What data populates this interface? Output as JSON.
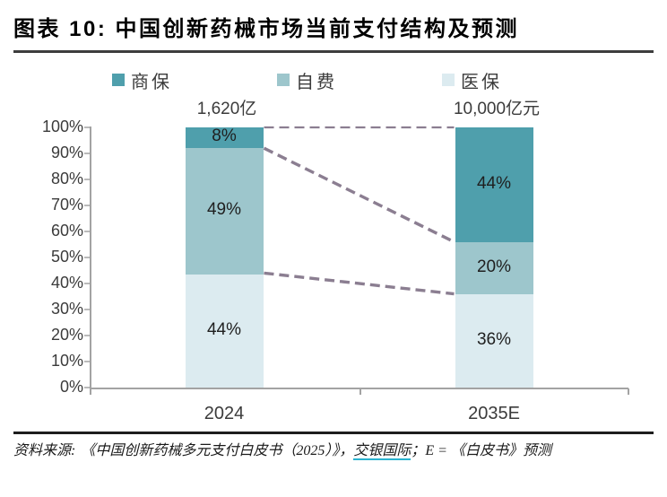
{
  "header": {
    "title": "图表 10: 中国创新药械市场当前支付结构及预测"
  },
  "legend": [
    {
      "label": "商保",
      "color": "#4f9fac"
    },
    {
      "label": "自费",
      "color": "#9dc6cc"
    },
    {
      "label": "医保",
      "color": "#dcebf0"
    }
  ],
  "chart_data": {
    "type": "bar",
    "stacked": true,
    "title": "中国创新药械市场当前支付结构及预测",
    "categories": [
      "2024",
      "2035E"
    ],
    "category_totals": [
      "1,620亿",
      "10,000亿元"
    ],
    "series": [
      {
        "name": "商保",
        "color": "#4f9fac",
        "values": [
          8,
          44
        ]
      },
      {
        "name": "自费",
        "color": "#9dc6cc",
        "values": [
          49,
          20
        ]
      },
      {
        "name": "医保",
        "color": "#dcebf0",
        "values": [
          44,
          36
        ]
      }
    ],
    "value_suffix": "%",
    "ylim": [
      0,
      100
    ],
    "y_ticks": [
      "100%",
      "90%",
      "80%",
      "70%",
      "60%",
      "50%",
      "40%",
      "30%",
      "20%",
      "10%",
      "0%"
    ],
    "legend_position": "top",
    "grid": false,
    "connectors": [
      {
        "from_pct": 100,
        "to_pct": 100
      },
      {
        "from_pct": 92,
        "to_pct": 56
      },
      {
        "from_pct": 44,
        "to_pct": 36
      }
    ],
    "connector_color": "#8b7e91",
    "axis_color": "#a3a3a3"
  },
  "footer": {
    "prefix": "资料来源:",
    "text_before_link": "《中国创新药械多元支付白皮书（2025）》，",
    "link": "交银国际",
    "text_after_link": "；E = 《白皮书》预测",
    "link_underline_color": "#2ab3cf"
  }
}
